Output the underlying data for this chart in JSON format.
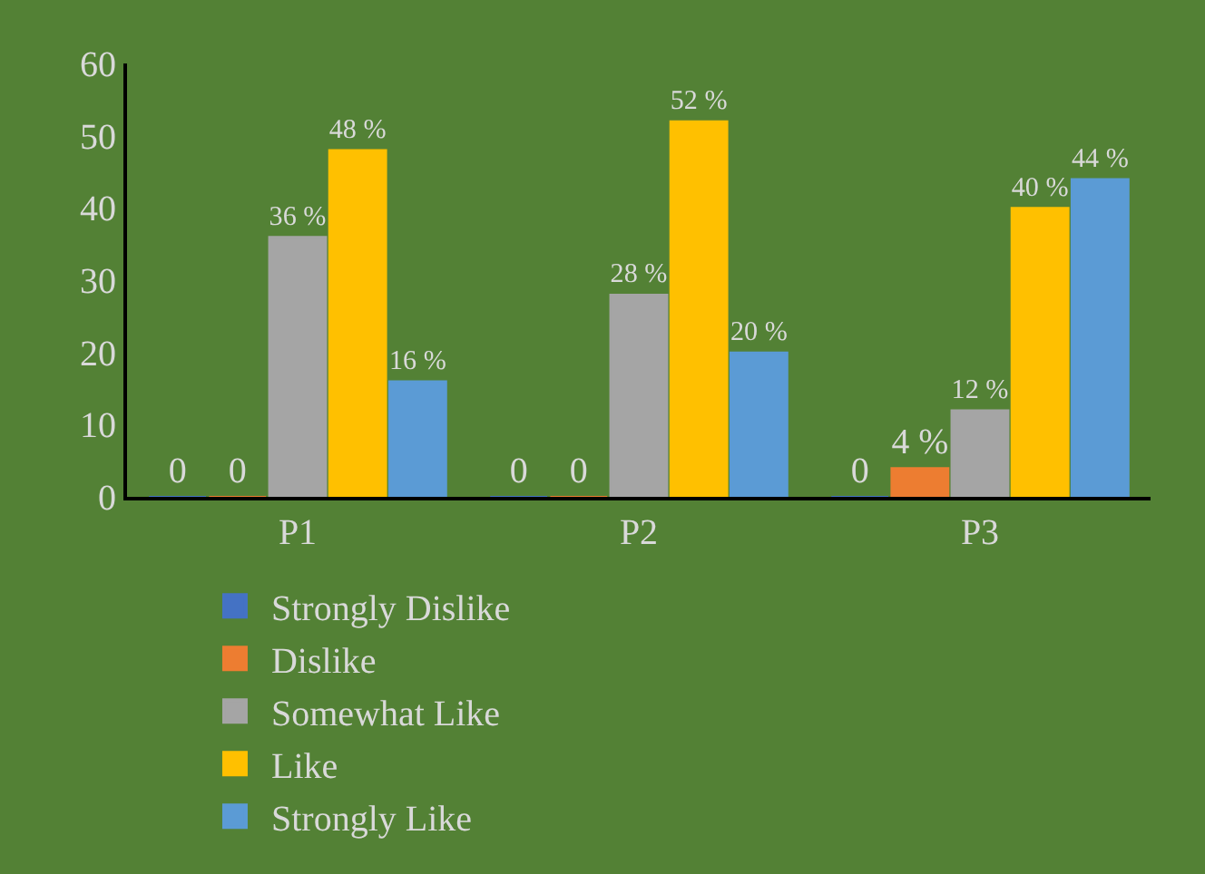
{
  "chart_data": {
    "type": "bar",
    "categories": [
      "P1",
      "P2",
      "P3"
    ],
    "series": [
      {
        "name": "Strongly Dislike",
        "color": "#4472c4",
        "values": [
          0,
          0,
          0
        ],
        "value_labels": [
          "0",
          "0",
          "0"
        ]
      },
      {
        "name": "Dislike",
        "color": "#ed7d31",
        "values": [
          0,
          0,
          4
        ],
        "value_labels": [
          "0",
          "0",
          "4 %"
        ]
      },
      {
        "name": "Somewhat Like",
        "color": "#a5a5a5",
        "values": [
          36,
          28,
          12
        ],
        "value_labels": [
          "36 %",
          "28 %",
          "12 %"
        ]
      },
      {
        "name": "Like",
        "color": "#ffc000",
        "values": [
          48,
          52,
          40
        ],
        "value_labels": [
          "48 %",
          "52 %",
          "40 %"
        ]
      },
      {
        "name": "Strongly Like",
        "color": "#5b9bd5",
        "values": [
          16,
          20,
          44
        ],
        "value_labels": [
          "16 %",
          "20 %",
          "44 %"
        ]
      }
    ],
    "ylim": [
      0,
      60
    ],
    "yticks": [
      0,
      10,
      20,
      30,
      40,
      50,
      60
    ],
    "grid": false,
    "legend": "bottom"
  }
}
